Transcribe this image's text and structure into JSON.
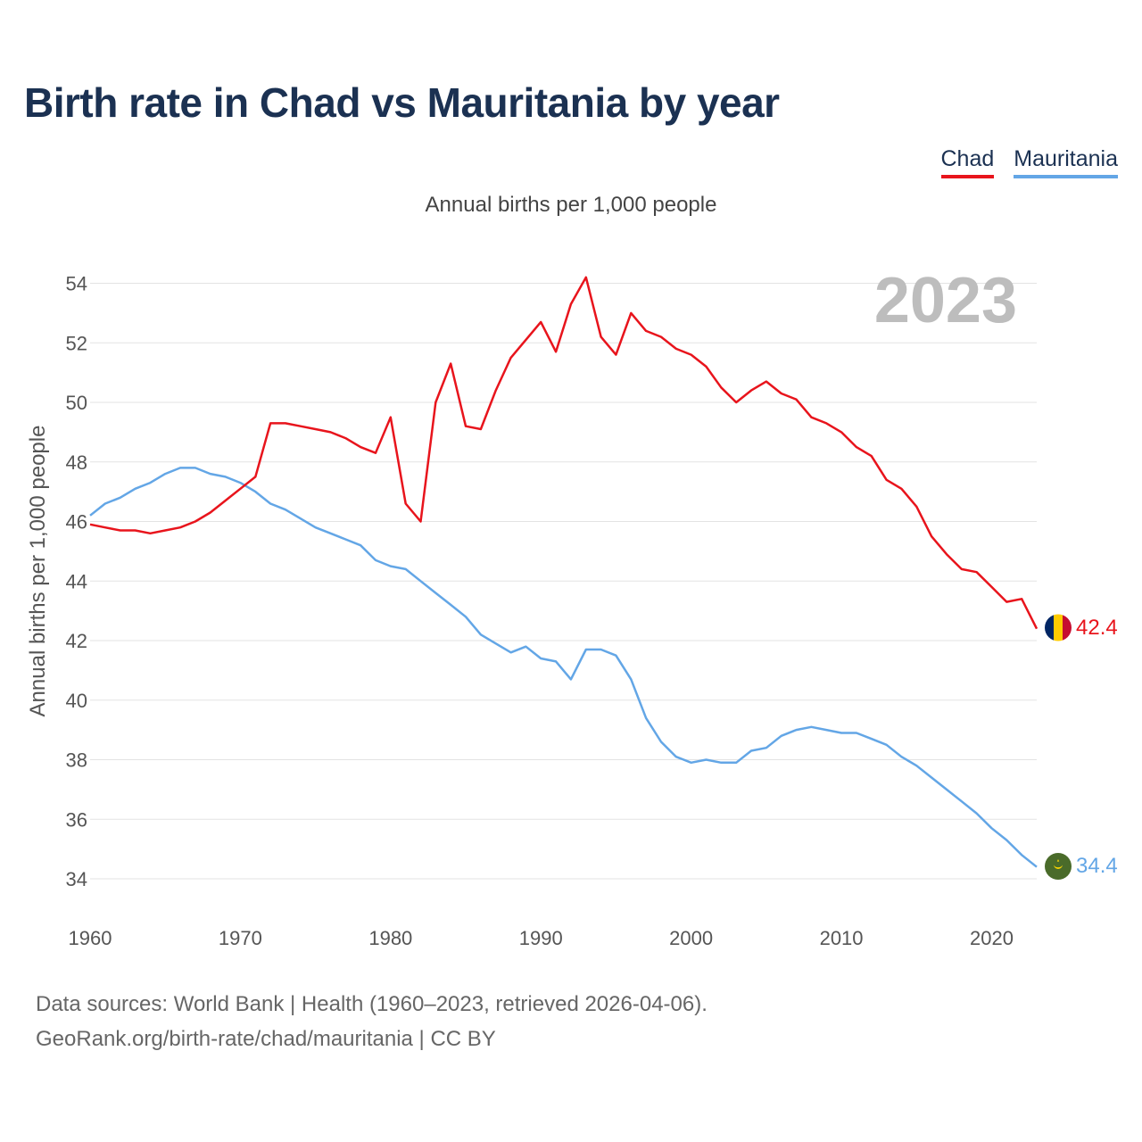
{
  "title": "Birth rate in Chad vs Mauritania by year",
  "subtitle": "Annual births per 1,000 people",
  "source_line1": "Data sources: World Bank | Health (1960–2023, retrieved 2026-04-06).",
  "source_line2": "GeoRank.org/birth-rate/chad/mauritania | CC BY",
  "legend": [
    {
      "label": "Chad",
      "color": "#e8141c"
    },
    {
      "label": "Mauritania",
      "color": "#63a6e6"
    }
  ],
  "chart_data": {
    "type": "line",
    "title": "Birth rate in Chad vs Mauritania by year",
    "ylabel": "Annual births per 1,000 people",
    "xlabel": "",
    "year_marker": "2023",
    "x_ticks": [
      "1960",
      "1970",
      "1980",
      "1990",
      "2000",
      "2010",
      "2020"
    ],
    "y_ticks": [
      "34",
      "36",
      "38",
      "40",
      "42",
      "44",
      "46",
      "48",
      "50",
      "52",
      "54"
    ],
    "xlim": [
      1960,
      2023
    ],
    "ylim": [
      33,
      55
    ],
    "x": [
      1960,
      1961,
      1962,
      1963,
      1964,
      1965,
      1966,
      1967,
      1968,
      1969,
      1970,
      1971,
      1972,
      1973,
      1974,
      1975,
      1976,
      1977,
      1978,
      1979,
      1980,
      1981,
      1982,
      1983,
      1984,
      1985,
      1986,
      1987,
      1988,
      1989,
      1990,
      1991,
      1992,
      1993,
      1994,
      1995,
      1996,
      1997,
      1998,
      1999,
      2000,
      2001,
      2002,
      2003,
      2004,
      2005,
      2006,
      2007,
      2008,
      2009,
      2010,
      2011,
      2012,
      2013,
      2014,
      2015,
      2016,
      2017,
      2018,
      2019,
      2020,
      2021,
      2022,
      2023
    ],
    "series": [
      {
        "name": "Chad",
        "color": "#e8141c",
        "end_label": "42.4",
        "values": [
          45.9,
          45.8,
          45.7,
          45.7,
          45.6,
          45.7,
          45.8,
          46.0,
          46.3,
          46.7,
          47.1,
          47.5,
          49.3,
          49.3,
          49.2,
          49.1,
          49.0,
          48.8,
          48.5,
          48.3,
          49.5,
          46.6,
          46.0,
          50.0,
          51.3,
          49.2,
          49.1,
          50.4,
          51.5,
          52.1,
          52.7,
          51.7,
          53.3,
          54.2,
          52.2,
          51.6,
          53.0,
          52.4,
          52.2,
          51.8,
          51.6,
          51.2,
          50.5,
          50.0,
          50.4,
          50.7,
          50.3,
          50.1,
          49.5,
          49.3,
          49.0,
          48.5,
          48.2,
          47.4,
          47.1,
          46.5,
          45.5,
          44.9,
          44.4,
          44.3,
          43.8,
          43.3,
          43.4,
          42.4
        ]
      },
      {
        "name": "Mauritania",
        "color": "#63a6e6",
        "end_label": "34.4",
        "values": [
          46.2,
          46.6,
          46.8,
          47.1,
          47.3,
          47.6,
          47.8,
          47.8,
          47.6,
          47.5,
          47.3,
          47.0,
          46.6,
          46.4,
          46.1,
          45.8,
          45.6,
          45.4,
          45.2,
          44.7,
          44.5,
          44.4,
          44.0,
          43.6,
          43.2,
          42.8,
          42.2,
          41.9,
          41.6,
          41.8,
          41.4,
          41.3,
          40.7,
          41.7,
          41.7,
          41.5,
          40.7,
          39.4,
          38.6,
          38.1,
          37.9,
          38.0,
          37.9,
          37.9,
          38.3,
          38.4,
          38.8,
          39.0,
          39.1,
          39.0,
          38.9,
          38.9,
          38.7,
          38.5,
          38.1,
          37.8,
          37.4,
          37.0,
          36.6,
          36.2,
          35.7,
          35.3,
          34.8,
          34.4
        ]
      }
    ]
  }
}
